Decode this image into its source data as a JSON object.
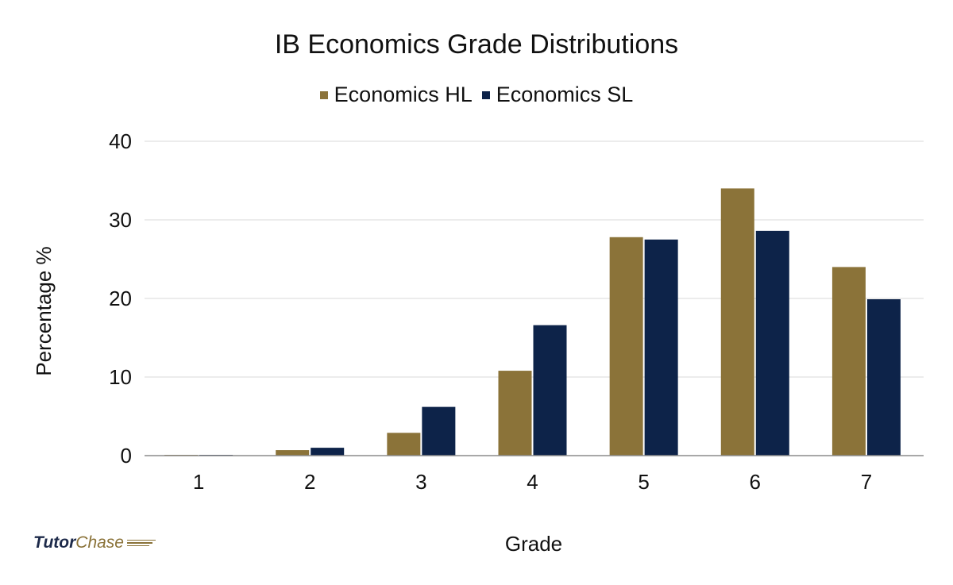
{
  "chart_data": {
    "type": "bar",
    "title": "IB Economics Grade Distributions",
    "xlabel": "Grade",
    "ylabel": "Percentage %",
    "categories": [
      "1",
      "2",
      "3",
      "4",
      "5",
      "6",
      "7"
    ],
    "yticks": [
      "0",
      "10",
      "20",
      "30",
      "40"
    ],
    "ylim": [
      0,
      40
    ],
    "grid": true,
    "legend_position": "top",
    "series": [
      {
        "name": "Economics HL",
        "color": "#8b7339",
        "values": [
          0.1,
          0.7,
          2.9,
          10.8,
          27.8,
          34.0,
          24.0
        ]
      },
      {
        "name": "Economics SL",
        "color": "#0d2349",
        "values": [
          0.1,
          1.0,
          6.2,
          16.6,
          27.5,
          28.6,
          19.9
        ]
      }
    ]
  },
  "brand": {
    "part1": "Tutor",
    "part2": "Chase"
  }
}
